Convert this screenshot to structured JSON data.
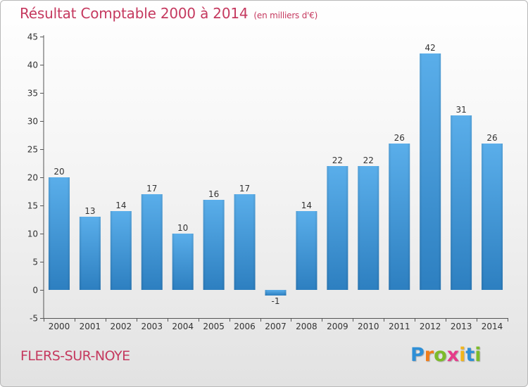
{
  "title": "Résultat Comptable 2000 à 2014",
  "subtitle": "(en milliers d'€)",
  "commune": "FLERS-SUR-NOYE",
  "logo": {
    "letters": [
      "P",
      "r",
      "o",
      "x",
      "i",
      "t",
      "i"
    ]
  },
  "colors": {
    "bar_top": "#5aaeea",
    "bar_bottom": "#2d7fc0",
    "title": "#c5395f"
  },
  "chart_data": {
    "type": "bar",
    "title": "Résultat Comptable 2000 à 2014",
    "unit": "(en milliers d'€)",
    "categories": [
      "2000",
      "2001",
      "2002",
      "2003",
      "2004",
      "2005",
      "2006",
      "2007",
      "2008",
      "2009",
      "2010",
      "2011",
      "2012",
      "2013",
      "2014"
    ],
    "values": [
      20,
      13,
      14,
      17,
      10,
      16,
      17,
      -1,
      14,
      22,
      22,
      26,
      42,
      31,
      26
    ],
    "labels": [
      "20",
      "13",
      "14",
      "17",
      "10",
      "16",
      "17",
      "-1",
      "14",
      "22",
      "22",
      "26",
      "42",
      "31",
      "26"
    ],
    "ylim": [
      -5,
      45
    ],
    "yticks": [
      -5,
      0,
      5,
      10,
      15,
      20,
      25,
      30,
      35,
      40,
      45
    ],
    "grid": false,
    "xlabel": "",
    "ylabel": ""
  }
}
